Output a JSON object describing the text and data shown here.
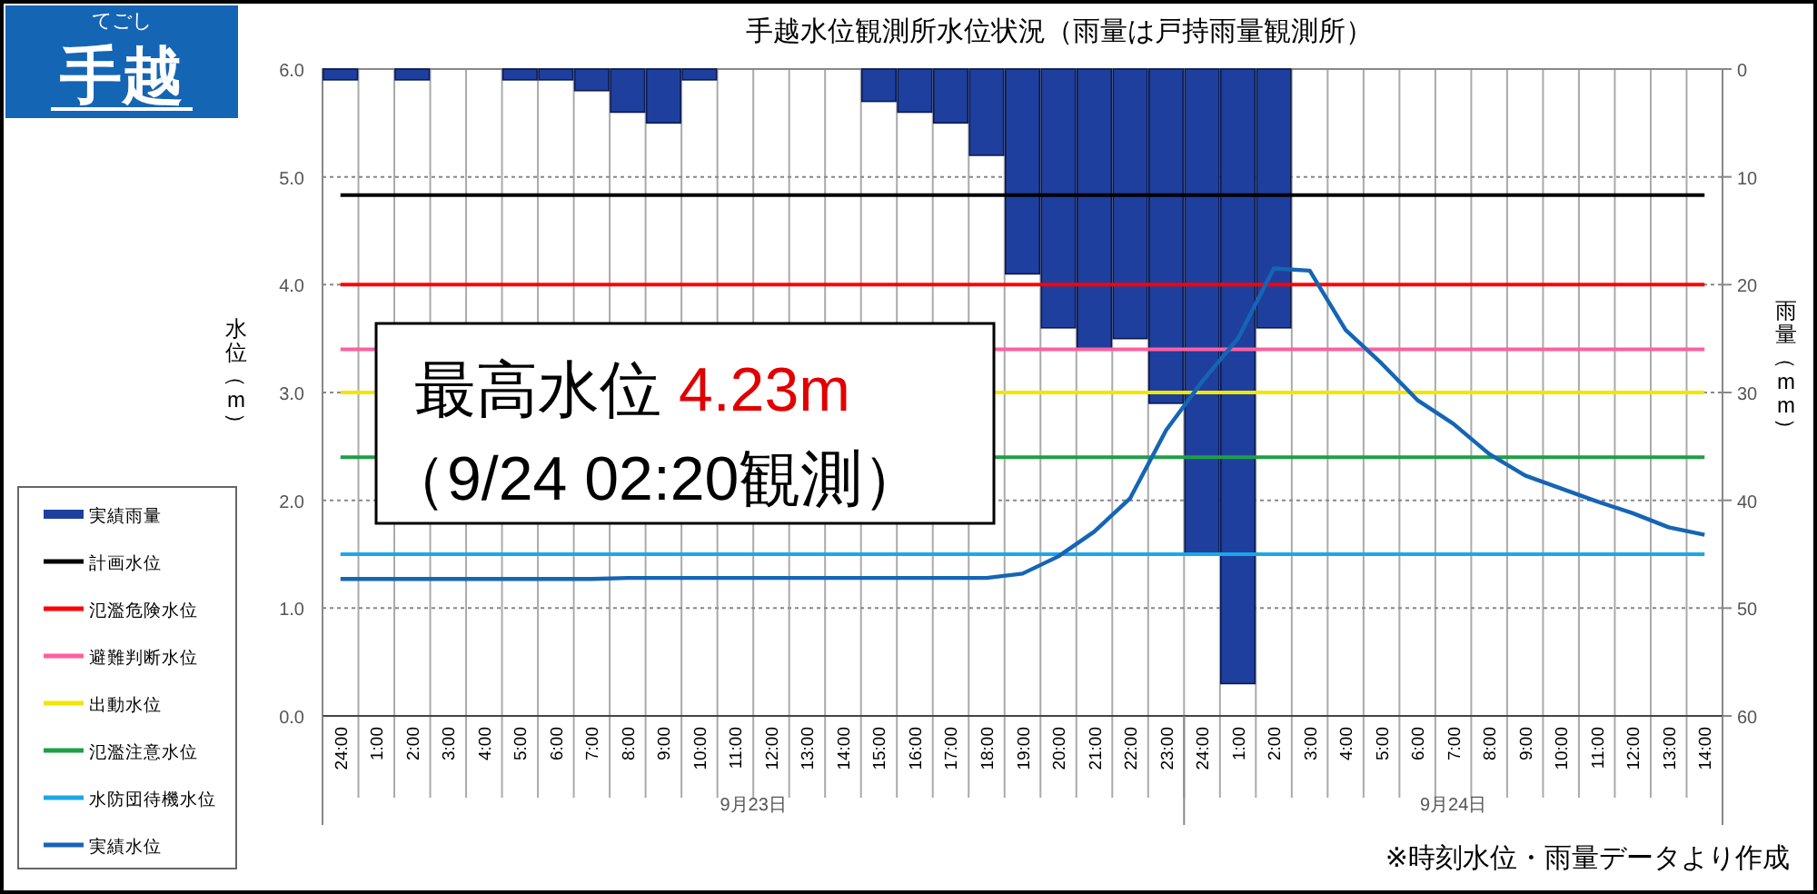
{
  "chart_data": {
    "type": "bar",
    "title": "手越水位観測所水位状況（雨量は戸持雨量観測所）",
    "ylabel": "水位（m）",
    "y2label": "雨量（mm）",
    "categories": [
      "24:00",
      "1:00",
      "2:00",
      "3:00",
      "4:00",
      "5:00",
      "6:00",
      "7:00",
      "8:00",
      "9:00",
      "10:00",
      "11:00",
      "12:00",
      "13:00",
      "14:00",
      "15:00",
      "16:00",
      "17:00",
      "18:00",
      "19:00",
      "20:00",
      "21:00",
      "22:00",
      "23:00",
      "24:00",
      "1:00",
      "2:00",
      "3:00",
      "4:00",
      "5:00",
      "6:00",
      "7:00",
      "8:00",
      "9:00",
      "10:00",
      "11:00",
      "12:00",
      "13:00",
      "14:00"
    ],
    "series": [
      {
        "name": "実績雨量",
        "axis": "y2",
        "color": "#1f3f9f",
        "values": [
          1,
          0,
          1,
          0,
          0,
          1,
          1,
          2,
          4,
          5,
          1,
          0,
          0,
          0,
          0,
          3,
          4,
          5,
          8,
          19,
          24,
          26,
          25,
          31,
          45,
          57,
          24,
          0,
          0,
          0,
          0,
          0,
          0,
          0,
          0,
          0,
          0,
          0,
          0
        ]
      },
      {
        "name": "実績水位",
        "type": "line",
        "color": "#1565b5",
        "values": [
          1.27,
          1.27,
          1.27,
          1.27,
          1.27,
          1.27,
          1.27,
          1.27,
          1.28,
          1.28,
          1.28,
          1.28,
          1.28,
          1.28,
          1.28,
          1.28,
          1.28,
          1.28,
          1.28,
          1.32,
          1.48,
          1.71,
          2.02,
          2.65,
          3.1,
          3.5,
          4.15,
          4.13,
          3.58,
          3.27,
          2.93,
          2.71,
          2.43,
          2.23,
          2.11,
          1.99,
          1.88,
          1.75,
          1.68
        ]
      }
    ],
    "ylim": [
      0,
      6
    ],
    "yticks": [
      {
        "value": 0,
        "label": "0.0"
      },
      {
        "value": 1,
        "label": "1.0"
      },
      {
        "value": 2,
        "label": "2.0"
      },
      {
        "value": 3,
        "label": "3.0"
      },
      {
        "value": 4,
        "label": "4.0"
      },
      {
        "value": 5,
        "label": "5.0"
      },
      {
        "value": 6,
        "label": "6.0"
      }
    ],
    "y2lim": [
      60,
      0
    ],
    "y2ticks": [
      0,
      10,
      20,
      30,
      40,
      50,
      60
    ],
    "ref_lines": [
      {
        "axis": "y",
        "value": 4.83,
        "label": "計画水位",
        "color": "#000000"
      },
      {
        "axis": "y",
        "value": 4.0,
        "label": "氾濫危険水位",
        "color": "#ff0000"
      },
      {
        "axis": "y",
        "value": 3.4,
        "label": "避難判断水位",
        "color": "#ff5f9e"
      },
      {
        "axis": "y",
        "value": 3.0,
        "label": "出動水位",
        "color": "#f2e600"
      },
      {
        "axis": "y",
        "value": 2.4,
        "label": "氾濫注意水位",
        "color": "#1ea044"
      },
      {
        "axis": "y",
        "value": 1.5,
        "label": "水防団待機水位",
        "color": "#1aa8e6"
      }
    ],
    "annotations": [
      "てごし",
      "手越",
      "最高水位 4.23m",
      "（9/24 02:20観測）",
      "9月23日",
      "9月24日",
      "※時刻水位・雨量データより作成"
    ],
    "grid": true,
    "legend": "left"
  }
}
